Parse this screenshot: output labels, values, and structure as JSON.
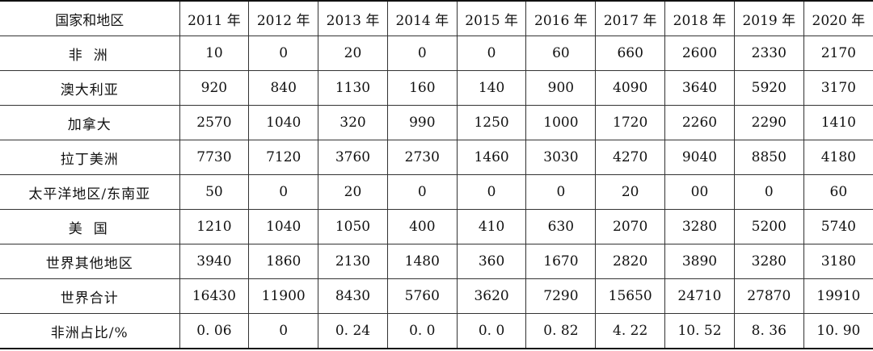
{
  "table": {
    "header": {
      "region": "国家和地区",
      "years": [
        "2011 年",
        "2012 年",
        "2013 年",
        "2014 年",
        "2015 年",
        "2016 年",
        "2017 年",
        "2018 年",
        "2019 年",
        "2020 年"
      ]
    },
    "rows": [
      {
        "region": "非洲",
        "values": [
          "10",
          "0",
          "20",
          "0",
          "0",
          "60",
          "660",
          "2600",
          "2330",
          "2170"
        ]
      },
      {
        "region": "澳大利亚",
        "values": [
          "920",
          "840",
          "1130",
          "160",
          "140",
          "900",
          "4090",
          "3640",
          "5920",
          "3170"
        ]
      },
      {
        "region": "加拿大",
        "values": [
          "2570",
          "1040",
          "320",
          "990",
          "1250",
          "1000",
          "1720",
          "2260",
          "2290",
          "1410"
        ]
      },
      {
        "region": "拉丁美洲",
        "values": [
          "7730",
          "7120",
          "3760",
          "2730",
          "1460",
          "3030",
          "4270",
          "9040",
          "8850",
          "4180"
        ]
      },
      {
        "region": "太平洋地区/东南亚",
        "values": [
          "50",
          "0",
          "20",
          "0",
          "0",
          "0",
          "20",
          "00",
          "0",
          "60"
        ]
      },
      {
        "region": "美国",
        "values": [
          "1210",
          "1040",
          "1050",
          "400",
          "410",
          "630",
          "2070",
          "3280",
          "5200",
          "5740"
        ]
      },
      {
        "region": "世界其他地区",
        "values": [
          "3940",
          "1860",
          "2130",
          "1480",
          "360",
          "1670",
          "2820",
          "3890",
          "3280",
          "3180"
        ]
      },
      {
        "region": "世界合计",
        "values": [
          "16430",
          "11900",
          "8430",
          "5760",
          "3620",
          "7290",
          "15650",
          "24710",
          "27870",
          "19910"
        ]
      },
      {
        "region": "非洲占比/%",
        "values": [
          "0. 06",
          "0",
          "0. 24",
          "0. 0",
          "0. 0",
          "0. 82",
          "4. 22",
          "10. 52",
          "8. 36",
          "10. 90"
        ]
      }
    ]
  }
}
